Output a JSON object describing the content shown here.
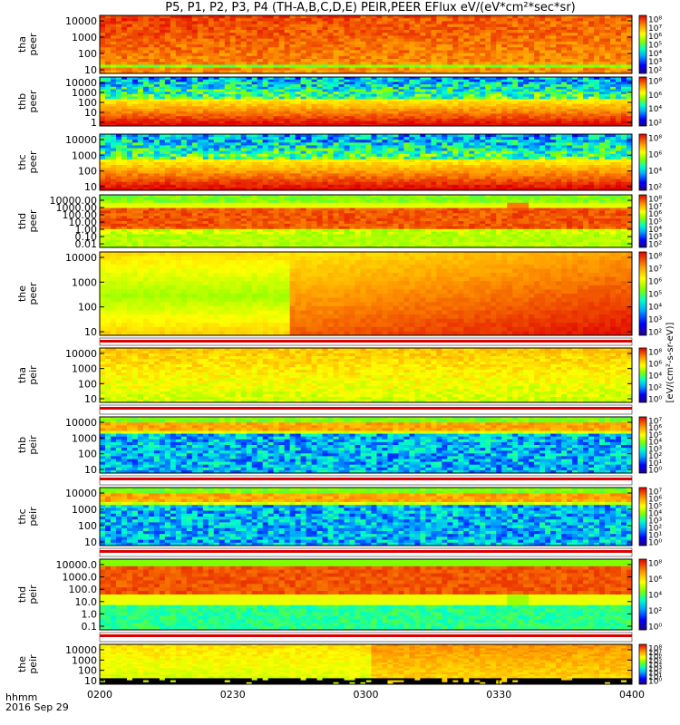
{
  "title": "P5, P1, P2, P3, P4 (TH-A,B,C,D,E) PEIR,PEER EFlux eV/(eV*cm²*sec*sr)",
  "time_axis": {
    "label": "hhmm",
    "date": "2016 Sep 29",
    "ticks": [
      "0200",
      "0230",
      "0300",
      "0330",
      "0400"
    ]
  },
  "colorbar_label": "[eV/(cm²-s-sr-eV)]",
  "colors": {
    "scale": [
      "#000080",
      "#0000ff",
      "#00a0ff",
      "#00ffcc",
      "#7fff00",
      "#ffff00",
      "#ffa000",
      "#ff3000",
      "#dd0000"
    ]
  },
  "chart_data": [
    {
      "type": "heatmap",
      "probe": "tha",
      "species": "peer",
      "ylabel": "tha\npeer",
      "yscale": "log",
      "yticks": [
        "10000",
        "1000",
        "100",
        "10"
      ],
      "x_range": [
        "0200",
        "0400"
      ],
      "colorbar_ticks": [
        "10⁸",
        "10⁷",
        "10⁶",
        "10⁵",
        "10⁴",
        "10³",
        "10²"
      ],
      "profile": "peer_hot"
    },
    {
      "type": "heatmap",
      "probe": "thb",
      "species": "peer",
      "ylabel": "thb\npeer",
      "yscale": "log",
      "yticks": [
        "10000",
        "1000",
        "100",
        "10",
        "1"
      ],
      "x_range": [
        "0200",
        "0400"
      ],
      "colorbar_ticks": [
        "10⁸",
        "10⁶",
        "10⁴",
        "10²"
      ],
      "profile": "peer_banded"
    },
    {
      "type": "heatmap",
      "probe": "thc",
      "species": "peer",
      "ylabel": "thc\npeer",
      "yscale": "log",
      "yticks": [
        "10000",
        "1000",
        "100",
        "10"
      ],
      "x_range": [
        "0200",
        "0400"
      ],
      "colorbar_ticks": [
        "10⁸",
        "10⁶",
        "10⁴",
        "10²"
      ],
      "profile": "peer_banded"
    },
    {
      "type": "heatmap",
      "probe": "thd",
      "species": "peer",
      "ylabel": "thd\npeer",
      "yscale": "log",
      "yticks": [
        "10000.00",
        "1000.00",
        "100.00",
        "10.00",
        "1.00",
        "0.10",
        "0.01"
      ],
      "x_range": [
        "0200",
        "0400"
      ],
      "colorbar_ticks": [
        "10⁸",
        "10⁷",
        "10⁶",
        "10⁵",
        "10⁴",
        "10³",
        "10²"
      ],
      "profile": "peer_thd"
    },
    {
      "type": "heatmap",
      "probe": "the",
      "species": "peer",
      "ylabel": "the\npeer",
      "yscale": "log",
      "yticks": [
        "10000",
        "1000",
        "100",
        "10"
      ],
      "x_range": [
        "0200",
        "0400"
      ],
      "colorbar_ticks": [
        "10⁸",
        "10⁷",
        "10⁶",
        "10⁵",
        "10⁴",
        "10³",
        "10²"
      ],
      "profile": "peer_the"
    },
    {
      "type": "heatmap",
      "probe": "tha",
      "species": "peir",
      "ylabel": "tha\npeir",
      "yscale": "log",
      "yticks": [
        "10000",
        "1000",
        "100",
        "10"
      ],
      "x_range": [
        "0200",
        "0400"
      ],
      "colorbar_ticks": [
        "10⁸",
        "10⁶",
        "10⁴",
        "10²",
        "10⁰"
      ],
      "profile": "peir_yellow"
    },
    {
      "type": "heatmap",
      "probe": "thb",
      "species": "peir",
      "ylabel": "thb\npeir",
      "yscale": "log",
      "yticks": [
        "10000",
        "1000",
        "100",
        "10"
      ],
      "x_range": [
        "0200",
        "0400"
      ],
      "colorbar_ticks": [
        "10⁷",
        "10⁶",
        "10⁵",
        "10⁴",
        "10³",
        "10²",
        "10¹",
        "10⁰"
      ],
      "profile": "peir_noise"
    },
    {
      "type": "heatmap",
      "probe": "thc",
      "species": "peir",
      "ylabel": "thc\npeir",
      "yscale": "log",
      "yticks": [
        "10000",
        "1000",
        "100",
        "10"
      ],
      "x_range": [
        "0200",
        "0400"
      ],
      "colorbar_ticks": [
        "10⁷",
        "10⁶",
        "10⁵",
        "10⁴",
        "10³",
        "10²",
        "10¹",
        "10⁰"
      ],
      "profile": "peir_noise"
    },
    {
      "type": "heatmap",
      "probe": "thd",
      "species": "peir",
      "ylabel": "thd\npeir",
      "yscale": "log",
      "yticks": [
        "10000.0",
        "1000.0",
        "100.0",
        "10.0",
        "1.0",
        "0.1"
      ],
      "x_range": [
        "0200",
        "0400"
      ],
      "colorbar_ticks": [
        "10⁸",
        "10⁶",
        "10⁴",
        "10²",
        "10⁰"
      ],
      "profile": "peir_thd"
    },
    {
      "type": "heatmap",
      "probe": "the",
      "species": "peir",
      "ylabel": "the\npeir",
      "yscale": "log",
      "yticks": [
        "10000",
        "1000",
        "100",
        "10"
      ],
      "x_range": [
        "0200",
        "0400"
      ],
      "colorbar_ticks": [
        "10⁸",
        "10⁷",
        "10⁶",
        "10⁵",
        "10⁴",
        "10³",
        "10²",
        "10¹",
        "10⁰"
      ],
      "profile": "peir_the"
    }
  ]
}
